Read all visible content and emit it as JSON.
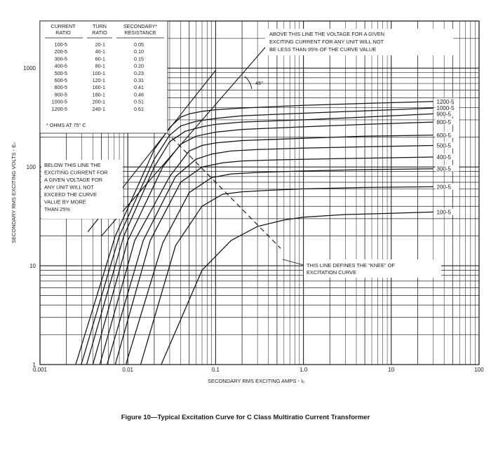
{
  "caption": "Figure 10—Typical Excitation Curve for C Class Multiratio Current Transformer",
  "chart_data": {
    "type": "line",
    "xscale": "log",
    "yscale": "log",
    "xlim": [
      0.001,
      100
    ],
    "ylim": [
      1,
      3000
    ],
    "grid": true,
    "xlabel": "SECONDARY RMS EXCITING AMPS - Iₑ",
    "ylabel": "SECONDARY RMS EXCITING VOLTS - Eₛ",
    "x_tick_labels": [
      "0.001",
      "0.01",
      "0.1",
      "1.0",
      "10",
      "100"
    ],
    "x_tick_values": [
      0.001,
      0.01,
      0.1,
      1,
      10,
      100
    ],
    "y_tick_labels": [
      "1",
      "10",
      "100",
      "1000"
    ],
    "y_tick_values": [
      1,
      10,
      100,
      1000
    ],
    "series": [
      {
        "name": "1200-5",
        "x": [
          0.00255,
          0.0072,
          0.02,
          0.03,
          0.04,
          0.05,
          0.07,
          0.1,
          0.2,
          1,
          5,
          30
        ],
        "y": [
          1,
          20,
          150,
          250,
          320,
          345,
          365,
          380,
          395,
          420,
          440,
          460
        ]
      },
      {
        "name": "1000-5",
        "x": [
          0.00295,
          0.008,
          0.02,
          0.03,
          0.04,
          0.06,
          0.1,
          0.2,
          1,
          5,
          30
        ],
        "y": [
          1,
          20,
          120,
          210,
          260,
          290,
          310,
          330,
          350,
          370,
          395
        ]
      },
      {
        "name": "900-5",
        "x": [
          0.0034,
          0.009,
          0.02,
          0.03,
          0.045,
          0.07,
          0.1,
          0.2,
          1,
          5,
          30
        ],
        "y": [
          1,
          20,
          100,
          180,
          230,
          255,
          270,
          285,
          300,
          320,
          345
        ]
      },
      {
        "name": "800-5",
        "x": [
          0.004,
          0.01,
          0.025,
          0.04,
          0.06,
          0.1,
          0.2,
          1,
          5,
          30
        ],
        "y": [
          1,
          18,
          100,
          170,
          205,
          225,
          240,
          255,
          270,
          285
        ]
      },
      {
        "name": "600-5",
        "x": [
          0.0048,
          0.012,
          0.03,
          0.05,
          0.07,
          0.1,
          0.2,
          1,
          5,
          30
        ],
        "y": [
          1,
          18,
          80,
          145,
          165,
          175,
          185,
          195,
          205,
          210
        ]
      },
      {
        "name": "500-5",
        "x": [
          0.0058,
          0.015,
          0.035,
          0.06,
          0.09,
          0.15,
          0.3,
          1,
          5,
          30
        ],
        "y": [
          1,
          18,
          80,
          120,
          135,
          145,
          150,
          155,
          160,
          165
        ]
      },
      {
        "name": "400-5",
        "x": [
          0.0072,
          0.018,
          0.04,
          0.07,
          0.12,
          0.2,
          0.5,
          2,
          10,
          30
        ],
        "y": [
          1,
          18,
          70,
          100,
          110,
          115,
          118,
          121,
          124,
          126
        ]
      },
      {
        "name": "300-5",
        "x": [
          0.0095,
          0.025,
          0.05,
          0.09,
          0.15,
          0.3,
          1,
          5,
          30
        ],
        "y": [
          1,
          17,
          55,
          78,
          85,
          88,
          91,
          94,
          96
        ]
      },
      {
        "name": "200-5",
        "x": [
          0.014,
          0.035,
          0.07,
          0.12,
          0.2,
          0.4,
          1,
          5,
          30
        ],
        "y": [
          1,
          16,
          40,
          53,
          56,
          58,
          60,
          62,
          63
        ]
      },
      {
        "name": "100-5",
        "x": [
          0.024,
          0.07,
          0.15,
          0.3,
          0.6,
          1,
          3,
          10,
          30
        ],
        "y": [
          1,
          9,
          18,
          25,
          29,
          31,
          33,
          34,
          35
        ]
      }
    ],
    "reference_lines": [
      {
        "name": "above-95-line",
        "x": [
          0.005,
          0.45
        ],
        "y": [
          20,
          2000
        ]
      },
      {
        "name": "below-25-line",
        "x": [
          0.0035,
          0.1
        ],
        "y": [
          22,
          950
        ]
      },
      {
        "name": "knee-line",
        "x": [
          0.02,
          0.55
        ],
        "y": [
          300,
          15
        ]
      }
    ],
    "annotations": {
      "above_line": [
        "ABOVE THIS LINE THE VOLTAGE FOR A GIVEN",
        "EXCITING CURRENT FOR ANY UNIT WILL NOT",
        "BE LESS THAN 95% OF THE CURVE VALUE"
      ],
      "below_line": [
        "BELOW THIS LINE THE",
        "EXCITING CURRENT FOR",
        "A GIVEN VOLTAGE FOR",
        "ANY UNIT WILL NOT",
        "EXCEED THE CURVE",
        "VALUE BY MORE",
        "THAN 25%"
      ],
      "knee_line": [
        "THIS LINE DEFINES THE \"KNEE\" OF",
        "EXCITATION CURVE"
      ],
      "angle": "45°"
    },
    "ratio_table": {
      "headers": [
        [
          "CURRENT",
          "RATIO"
        ],
        [
          "TURN",
          "RATIO"
        ],
        [
          "SECONDARY*",
          "RESISTANCE"
        ]
      ],
      "rows": [
        [
          "100-5",
          "20-1",
          "0.05"
        ],
        [
          "200-5",
          "40-1",
          "0.10"
        ],
        [
          "300-5",
          "60-1",
          "0.15"
        ],
        [
          "400-5",
          "80-1",
          "0.20"
        ],
        [
          "500-5",
          "100-1",
          "0.23"
        ],
        [
          "600-5",
          "120-1",
          "0.31"
        ],
        [
          "800-5",
          "160-1",
          "0.41"
        ],
        [
          "900-5",
          "180-1",
          "0.46"
        ],
        [
          "1000-5",
          "200-1",
          "0.51"
        ],
        [
          "1200-5",
          "240-1",
          "0.61"
        ]
      ],
      "footnote": "* OHMS AT 75° C"
    }
  }
}
